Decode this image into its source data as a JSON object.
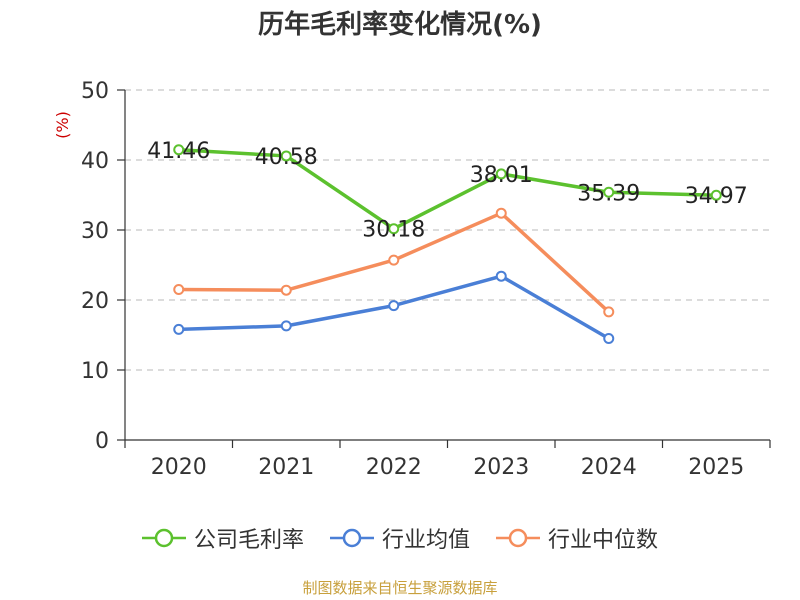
{
  "chart_data": {
    "type": "line",
    "title": "历年毛利率变化情况(%)",
    "ylabel": "(%)",
    "xlabel": "",
    "categories": [
      "2020",
      "2021",
      "2022",
      "2023",
      "2024",
      "2025"
    ],
    "ylim": [
      0,
      50
    ],
    "yticks": [
      0,
      10,
      20,
      30,
      40,
      50
    ],
    "grid": true,
    "legend_position": "bottom",
    "series": [
      {
        "name": "公司毛利率",
        "color": "#5cc12e",
        "values": [
          41.46,
          40.58,
          30.18,
          38.01,
          35.39,
          34.97
        ],
        "labels": [
          "41.46",
          "40.58",
          "30.18",
          "38.01",
          "35.39",
          "34.97"
        ]
      },
      {
        "name": "行业均值",
        "color": "#4a7fd6",
        "values": [
          15.8,
          16.3,
          19.2,
          23.4,
          14.5,
          null
        ]
      },
      {
        "name": "行业中位数",
        "color": "#f58d5c",
        "values": [
          21.5,
          21.4,
          25.7,
          32.4,
          18.3,
          null
        ]
      }
    ]
  },
  "source_note": "制图数据来自恒生聚源数据库"
}
